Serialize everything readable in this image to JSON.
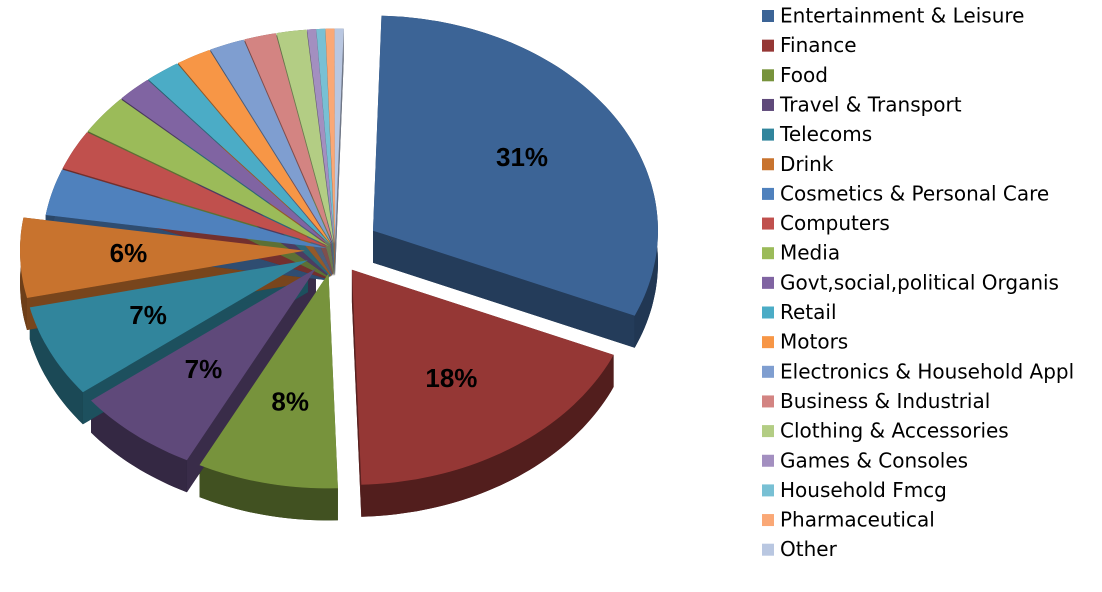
{
  "chart_data": {
    "type": "pie",
    "categories": [
      "Entertainment & Leisure",
      "Finance",
      "Food",
      "Travel & Transport",
      "Telecoms",
      "Drink",
      "Cosmetics & Personal Care",
      "Computers",
      "Media",
      "Govt,social,political Organis",
      "Retail",
      "Motors",
      "Electronics & Household Appl",
      "Business & Industrial",
      "Clothing & Accessories",
      "Games & Consoles",
      "Household Fmcg",
      "Pharmaceutical",
      "Other"
    ],
    "values": [
      31,
      18,
      8,
      7,
      7,
      6,
      3.5,
      3,
      3,
      2,
      2,
      2,
      2,
      1.8,
      1.7,
      0.5,
      0.5,
      0.5,
      0.5
    ],
    "value_labels": [
      "31%",
      "18%",
      "8%",
      "7%",
      "7%",
      "6%",
      null,
      null,
      null,
      null,
      null,
      null,
      null,
      null,
      null,
      null,
      null,
      null,
      null
    ],
    "colors": [
      "#3C6496",
      "#953735",
      "#77933C",
      "#5F497A",
      "#31859C",
      "#C8732E",
      "#4F81BD",
      "#C0504D",
      "#9BBB59",
      "#8064A2",
      "#4BACC6",
      "#F79646",
      "#7F9ED0",
      "#D38482",
      "#B3CD84",
      "#A38FC0",
      "#78C0D4",
      "#FAA876",
      "#B9C7E1"
    ],
    "legend": "right"
  }
}
